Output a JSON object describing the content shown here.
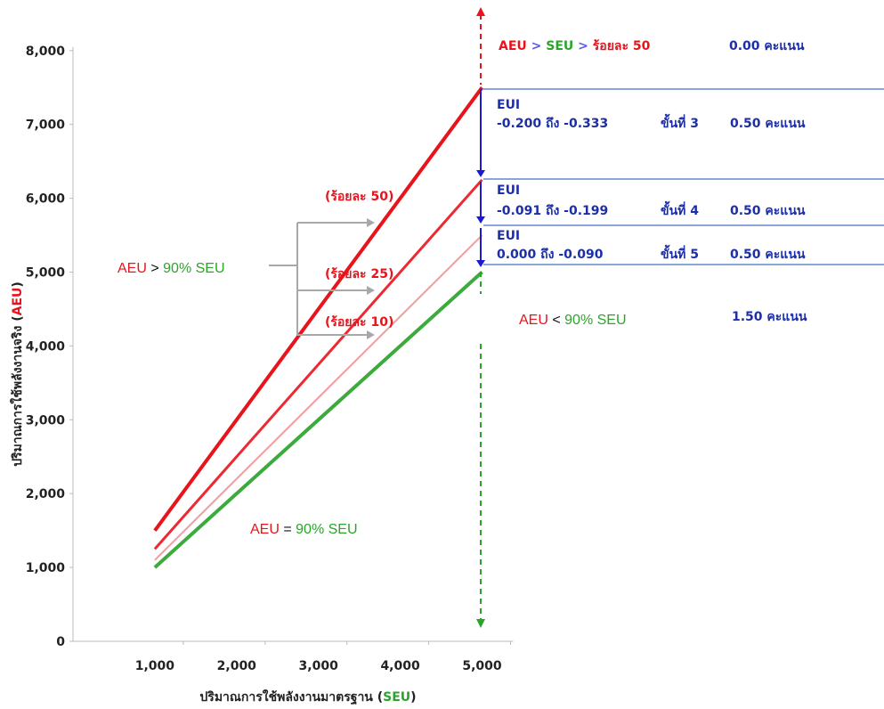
{
  "chart_data": {
    "type": "line",
    "xlabel": {
      "prefix": "ปริมาณการใช้พลังงานมาตรฐาน (",
      "key": "SEU",
      "suffix": ")"
    },
    "ylabel": {
      "prefix": "ปริมาณการใช้พลังงานจริง (",
      "key": "AEU",
      "suffix": ")"
    },
    "xlim": [
      0,
      5000
    ],
    "ylim": [
      0,
      8000
    ],
    "x_ticks": [
      1000,
      2000,
      3000,
      4000,
      5000
    ],
    "x_tick_labels": [
      "1,000",
      "2,000",
      "3,000",
      "4,000",
      "5,000"
    ],
    "y_ticks": [
      0,
      1000,
      2000,
      3000,
      4000,
      5000,
      6000,
      7000,
      8000
    ],
    "y_tick_labels": [
      "0",
      "1,000",
      "2,000",
      "3,000",
      "4,000",
      "5,000",
      "6,000",
      "7,000",
      "8,000"
    ],
    "series": [
      {
        "x": [
          1000,
          5000
        ],
        "y": [
          1500,
          7500
        ],
        "color": "#e8141c",
        "width": 4
      },
      {
        "x": [
          1000,
          5000
        ],
        "y": [
          1250,
          6250
        ],
        "color": "#ec2a33",
        "width": 3
      },
      {
        "x": [
          1000,
          5000
        ],
        "y": [
          1100,
          5500
        ],
        "color": "#f59aa0",
        "width": 2
      },
      {
        "x": [
          1000,
          5000
        ],
        "y": [
          1000,
          5000
        ],
        "color": "#3caa3c",
        "width": 4
      }
    ],
    "line_labels": [
      {
        "text": "(ร้อยละ 50)",
        "x": 3500,
        "y": 5970
      },
      {
        "text": "(ร้อยละ 25)",
        "x": 3500,
        "y": 4920
      },
      {
        "text": "(ร้อยละ 10)",
        "x": 3500,
        "y": 4270
      }
    ],
    "annotations": {
      "above": {
        "aeu": "AEU",
        "gt1": " > ",
        "seu": "SEU",
        "gt2": " > ",
        "pct": "ร้อยละ 50",
        "score": "0.00 คะแนน"
      },
      "bands": [
        {
          "l1": "EUI",
          "l2": "-0.200 ถึง -0.333",
          "step": "ขั้นที่ 3",
          "score": "0.50 คะแนน"
        },
        {
          "l1": "EUI",
          "l2": "-0.091 ถึง -0.199",
          "step": "ขั้นที่ 4",
          "score": "0.50 คะแนน"
        },
        {
          "l1": "EUI",
          "l2": "0.000 ถึง -0.090",
          "step": "ขั้นที่ 5",
          "score": "0.50 คะแนน"
        }
      ],
      "below": {
        "aeu": "AEU",
        "op": " < ",
        "seu": "90% SEU",
        "score": "1.50 คะแนน"
      },
      "left_rule": {
        "aeu": "AEU",
        "op": " > ",
        "seu": "90% SEU"
      },
      "bottom_rule": {
        "aeu": "AEU",
        "op": " = ",
        "seu": "90% SEU"
      }
    },
    "colors": {
      "red": "#e8141c",
      "green": "#2aa52a",
      "blue": "#1a1ad6",
      "navy": "#1c2fa8",
      "band_line": "#8aa6d8",
      "gray": "#a8a8a8"
    }
  }
}
